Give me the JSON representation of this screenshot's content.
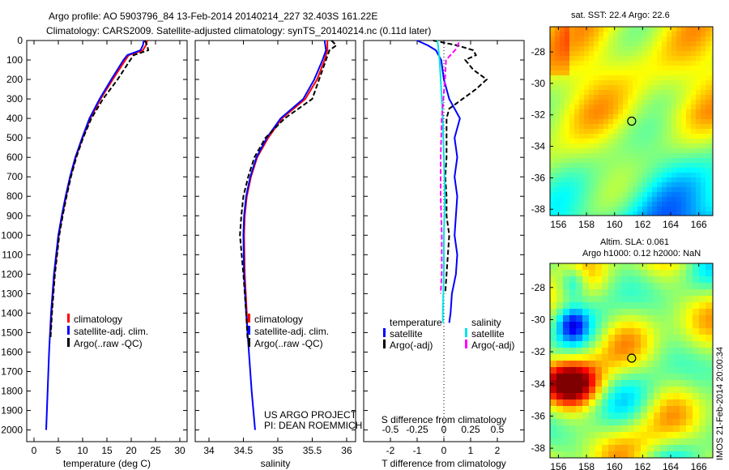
{
  "title_line1": "Argo profile: AO 5903796_84 13-Feb-2014 20140214_227 32.403S 161.22E",
  "title_line2": "Climatology: CARS2009. Satellite-adjusted climatology: synTS_20140214.nc (0.11d later)",
  "depth_ticks": [
    "0",
    "100",
    "200",
    "300",
    "400",
    "500",
    "600",
    "700",
    "800",
    "900",
    "1000",
    "1100",
    "1200",
    "1300",
    "1400",
    "1500",
    "1600",
    "1700",
    "1800",
    "1900",
    "2000"
  ],
  "colors": {
    "climatology": "#ff0000",
    "satellite": "#0000ff",
    "argo": "#000000",
    "sal_sat": "#00e5e5",
    "sal_argo": "#ff00ff"
  },
  "chart_data": [
    {
      "type": "line",
      "xlabel": "temperature (deg C)",
      "ylabel": "depth",
      "xlim": [
        -1.5,
        31.5
      ],
      "ylim": [
        2060,
        0
      ],
      "xticks": [
        "0",
        "5",
        "10",
        "15",
        "20",
        "25",
        "30"
      ],
      "legend": [
        "climatology",
        "satellite-adj. clim.",
        "Argo(..raw -QC)"
      ],
      "series": [
        {
          "name": "climatology",
          "color": "#ff0000",
          "depth": [
            0,
            25,
            50,
            75,
            100,
            200,
            300,
            400,
            500,
            600,
            700,
            800,
            900,
            1000,
            1200,
            1400,
            1500
          ],
          "values": [
            23.3,
            23,
            22.4,
            19.5,
            18.8,
            16.2,
            13.7,
            11.6,
            10,
            8.6,
            7.5,
            6.6,
            5.8,
            5.1,
            4.2,
            3.6,
            3.4
          ]
        },
        {
          "name": "satellite-adj. clim.",
          "color": "#0000ff",
          "depth": [
            0,
            25,
            50,
            75,
            100,
            200,
            300,
            400,
            500,
            600,
            700,
            800,
            900,
            1000,
            1200,
            1400,
            1600,
            1800,
            2000
          ],
          "values": [
            22.6,
            22.4,
            21.9,
            19.2,
            18.4,
            15.9,
            13.5,
            11.4,
            9.9,
            8.5,
            7.4,
            6.5,
            5.7,
            5,
            4.1,
            3.5,
            3.1,
            2.8,
            2.5
          ]
        },
        {
          "name": "Argo(..raw -QC)",
          "color": "#000000",
          "dash": true,
          "depth": [
            0,
            25,
            50,
            75,
            100,
            200,
            300,
            400,
            500,
            600,
            700,
            800,
            900,
            1000,
            1200,
            1400,
            1530
          ],
          "values": [
            22.8,
            23.3,
            23.5,
            20.5,
            19.8,
            17.2,
            14.2,
            11.8,
            10.1,
            8.7,
            7.6,
            6.7,
            5.9,
            5.2,
            4.3,
            3.7,
            3.4
          ]
        }
      ]
    },
    {
      "type": "line",
      "xlabel": "salinity",
      "ylabel": "depth",
      "xlim": [
        33.8,
        36.13
      ],
      "ylim": [
        2060,
        0
      ],
      "xticks": [
        "34",
        "34.5",
        "35",
        "35.5",
        "36"
      ],
      "legend": [
        "climatology",
        "satellite-adj. clim.",
        "Argo(..raw -QC)"
      ],
      "annotation": [
        "US ARGO PROJECT",
        "PI: DEAN ROEMMICH"
      ],
      "series": [
        {
          "name": "climatology",
          "color": "#ff0000",
          "depth": [
            0,
            50,
            100,
            200,
            300,
            400,
            500,
            600,
            700,
            800,
            900,
            1000,
            1200,
            1400,
            1500
          ],
          "values": [
            35.72,
            35.72,
            35.68,
            35.57,
            35.4,
            35.06,
            34.86,
            34.7,
            34.61,
            34.55,
            34.52,
            34.51,
            34.52,
            34.55,
            34.56
          ]
        },
        {
          "name": "satellite-adj. clim.",
          "color": "#0000ff",
          "depth": [
            0,
            50,
            100,
            200,
            300,
            400,
            500,
            600,
            700,
            800,
            900,
            1000,
            1200,
            1400,
            1600,
            1800,
            2000
          ],
          "values": [
            35.68,
            35.7,
            35.65,
            35.53,
            35.37,
            35.04,
            34.84,
            34.69,
            34.6,
            34.54,
            34.51,
            34.5,
            34.51,
            34.54,
            34.58,
            34.62,
            34.67
          ]
        },
        {
          "name": "Argo(..raw -QC)",
          "color": "#000000",
          "dash": true,
          "depth": [
            0,
            25,
            50,
            100,
            200,
            300,
            400,
            500,
            600,
            700,
            800,
            900,
            1000,
            1200,
            1400,
            1530
          ],
          "values": [
            35.78,
            35.85,
            35.75,
            35.7,
            35.6,
            35.5,
            35.1,
            34.82,
            34.66,
            34.57,
            34.5,
            34.47,
            34.45,
            34.5,
            34.54,
            34.56
          ]
        }
      ]
    },
    {
      "type": "line",
      "xlabel": "T difference from climatology",
      "xlabel2": "S difference from climatology",
      "ylabel": "depth",
      "xlim": [
        -3,
        3
      ],
      "ylim": [
        2060,
        0
      ],
      "xticks": [
        "-2",
        "-1",
        "0",
        "1",
        "2"
      ],
      "xticks2": [
        "-0.5",
        "-0.25",
        "0",
        "0.25",
        "0.5"
      ],
      "legend_headers": [
        "temperature",
        "salinity"
      ],
      "legend": [
        "satellite",
        "Argo(-adj)",
        "satellite",
        "Argo(-adj)"
      ],
      "series": [
        {
          "name": "T satellite",
          "color": "#0000ff",
          "depth": [
            0,
            25,
            50,
            100,
            200,
            300,
            400,
            500,
            600,
            700,
            800,
            900,
            1000,
            1100,
            1200,
            1300,
            1400,
            1450
          ],
          "values": [
            -1,
            -0.6,
            -0.3,
            -0.1,
            0,
            0.2,
            0.6,
            0.4,
            0.5,
            0.4,
            0.5,
            0.45,
            0.4,
            0.5,
            0.45,
            0.3,
            0.25,
            0.2
          ]
        },
        {
          "name": "T Argo(-adj)",
          "color": "#000000",
          "dash": true,
          "depth": [
            0,
            25,
            50,
            75,
            100,
            150,
            200,
            250,
            300,
            350,
            400,
            500,
            600,
            700,
            800,
            900,
            1000,
            1100,
            1200,
            1300
          ],
          "values": [
            -0.4,
            0.5,
            1.1,
            1.2,
            0.8,
            1.1,
            1.6,
            1.2,
            0.7,
            0.2,
            0.1,
            0.1,
            0.1,
            0.05,
            0.1,
            0.1,
            0.2,
            0.15,
            0.1,
            0.05
          ]
        },
        {
          "name": "S satellite",
          "color": "#00e5e5",
          "depth": [
            0,
            50,
            100,
            200,
            400,
            600,
            800,
            1000,
            1200,
            1400,
            1450
          ],
          "values": [
            -0.06,
            -0.05,
            -0.04,
            -0.03,
            -0.01,
            0,
            0.01,
            0,
            0,
            -0.01,
            -0.01
          ]
        },
        {
          "name": "S Argo(-adj)",
          "color": "#ff00ff",
          "dash": true,
          "depth": [
            10,
            40,
            100,
            200,
            400,
            600,
            800,
            1000,
            1200,
            1300
          ],
          "values": [
            0.14,
            0.12,
            0.02,
            0.01,
            -0.02,
            -0.03,
            -0.03,
            -0.02,
            -0.02,
            -0.03
          ]
        }
      ]
    },
    {
      "type": "heatmap",
      "title": "sat. SST: 22.4 Argo: 22.6",
      "xticks": [
        "156",
        "158",
        "160",
        "162",
        "164",
        "166"
      ],
      "yticks": [
        "-28",
        "-30",
        "-32",
        "-34",
        "-36",
        "-38"
      ],
      "xlim": [
        155.4,
        167
      ],
      "ylim": [
        -38.4,
        -26.4
      ],
      "marker": [
        161.22,
        -32.4
      ]
    },
    {
      "type": "heatmap",
      "title": "Altim. SLA: 0.061",
      "title2": "Argo h1000: 0.12 h2000: NaN",
      "xticks": [
        "156",
        "158",
        "160",
        "162",
        "164",
        "166"
      ],
      "yticks": [
        "-28",
        "-30",
        "-32",
        "-34",
        "-36",
        "-38"
      ],
      "xlim": [
        155.4,
        167
      ],
      "ylim": [
        -38.6,
        -26.5
      ],
      "marker": [
        161.22,
        -32.4
      ]
    }
  ],
  "watermark": "IMOS 21-Feb-2014 20:00:34"
}
